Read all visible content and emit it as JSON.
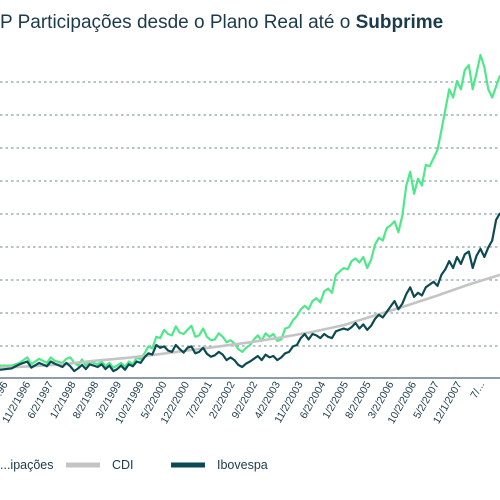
{
  "title": {
    "prefix": "P Participações desde o Plano Real até ",
    "o_word": "o",
    "bold": "Subprime"
  },
  "chart_data": {
    "type": "line",
    "title": "P Participações desde o Plano Real até o Subprime",
    "xlabel": "",
    "ylabel": "",
    "grid": true,
    "legend_position": "bottom",
    "x_tick_labels": [
      "...96",
      "11/2/1996",
      "6/2/1997",
      "1/2/1998",
      "8/2/1998",
      "3/2/1999",
      "10/2/1999",
      "5/2/2000",
      "12/2/2000",
      "7/2/2001",
      "2/2/2002",
      "9/2/2002",
      "4/2/2003",
      "11/2/2003",
      "6/2/2004",
      "1/2/2005",
      "8/2/2005",
      "3/2/2006",
      "10/2/2006",
      "5/2/2007",
      "12/1/2007",
      "7/..."
    ],
    "series": [
      {
        "name": "...ipações",
        "color": "#4ee88a",
        "values": [
          [
            0,
            18
          ],
          [
            3,
            18
          ],
          [
            5,
            22
          ],
          [
            7,
            30
          ],
          [
            8,
            20
          ],
          [
            10,
            28
          ],
          [
            12,
            22
          ],
          [
            13,
            30
          ],
          [
            14,
            25
          ],
          [
            16,
            22
          ],
          [
            17,
            28
          ],
          [
            18,
            30
          ],
          [
            19,
            22
          ],
          [
            20,
            18
          ],
          [
            21,
            27
          ],
          [
            22,
            18
          ],
          [
            23,
            24
          ],
          [
            25,
            20
          ],
          [
            26,
            24
          ],
          [
            27,
            17
          ],
          [
            28,
            22
          ],
          [
            29,
            15
          ],
          [
            30,
            18
          ],
          [
            31,
            22
          ],
          [
            32,
            16
          ],
          [
            33,
            24
          ],
          [
            34,
            20
          ],
          [
            35,
            30
          ],
          [
            36,
            27
          ],
          [
            37,
            36
          ],
          [
            38,
            46
          ],
          [
            39,
            43
          ],
          [
            40,
            60
          ],
          [
            41,
            58
          ],
          [
            42,
            70
          ],
          [
            43,
            64
          ],
          [
            44,
            62
          ],
          [
            45,
            75
          ],
          [
            46,
            66
          ],
          [
            47,
            64
          ],
          [
            48,
            70
          ],
          [
            49,
            76
          ],
          [
            50,
            60
          ],
          [
            51,
            62
          ],
          [
            52,
            72
          ],
          [
            53,
            60
          ],
          [
            54,
            55
          ],
          [
            55,
            56
          ],
          [
            56,
            65
          ],
          [
            57,
            60
          ],
          [
            58,
            52
          ],
          [
            59,
            55
          ],
          [
            60,
            50
          ],
          [
            61,
            42
          ],
          [
            62,
            38
          ],
          [
            63,
            44
          ],
          [
            64,
            48
          ],
          [
            65,
            56
          ],
          [
            66,
            62
          ],
          [
            67,
            54
          ],
          [
            68,
            65
          ],
          [
            69,
            60
          ],
          [
            70,
            64
          ],
          [
            71,
            54
          ],
          [
            72,
            56
          ],
          [
            73,
            72
          ],
          [
            74,
            74
          ],
          [
            75,
            84
          ],
          [
            76,
            90
          ],
          [
            77,
            100
          ],
          [
            78,
            105
          ],
          [
            79,
            100
          ],
          [
            80,
            112
          ],
          [
            81,
            116
          ],
          [
            82,
            110
          ],
          [
            83,
            126
          ],
          [
            84,
            130
          ],
          [
            85,
            124
          ],
          [
            86,
            150
          ],
          [
            87,
            155
          ],
          [
            88,
            160
          ],
          [
            89,
            158
          ],
          [
            90,
            170
          ],
          [
            91,
            174
          ],
          [
            92,
            168
          ],
          [
            93,
            176
          ],
          [
            94,
            160
          ],
          [
            95,
            172
          ],
          [
            96,
            194
          ],
          [
            97,
            204
          ],
          [
            98,
            200
          ],
          [
            99,
            218
          ],
          [
            100,
            222
          ],
          [
            101,
            228
          ],
          [
            102,
            212
          ],
          [
            103,
            236
          ],
          [
            104,
            280
          ],
          [
            105,
            300
          ],
          [
            106,
            268
          ],
          [
            107,
            290
          ],
          [
            108,
            280
          ],
          [
            109,
            310
          ],
          [
            110,
            308
          ],
          [
            111,
            320
          ],
          [
            112,
            332
          ],
          [
            113,
            360
          ],
          [
            114,
            390
          ],
          [
            115,
            420
          ],
          [
            116,
            408
          ],
          [
            117,
            432
          ],
          [
            118,
            420
          ],
          [
            119,
            448
          ],
          [
            120,
            455
          ],
          [
            121,
            420
          ],
          [
            122,
            444
          ],
          [
            123,
            470
          ],
          [
            124,
            452
          ],
          [
            125,
            420
          ],
          [
            126,
            408
          ],
          [
            127,
            424
          ],
          [
            128,
            440
          ]
        ]
      },
      {
        "name": "CDI",
        "color": "#c4c4c4",
        "values": [
          [
            0,
            15
          ],
          [
            8,
            17
          ],
          [
            16,
            20
          ],
          [
            24,
            25
          ],
          [
            32,
            29
          ],
          [
            40,
            34
          ],
          [
            48,
            40
          ],
          [
            56,
            46
          ],
          [
            64,
            52
          ],
          [
            72,
            59
          ],
          [
            80,
            67
          ],
          [
            88,
            77
          ],
          [
            96,
            91
          ],
          [
            104,
            105
          ],
          [
            112,
            120
          ],
          [
            120,
            136
          ],
          [
            128,
            150
          ]
        ]
      },
      {
        "name": "Ibovespa",
        "color": "#0c4a52",
        "values": [
          [
            0,
            12
          ],
          [
            3,
            14
          ],
          [
            5,
            20
          ],
          [
            7,
            24
          ],
          [
            8,
            15
          ],
          [
            10,
            22
          ],
          [
            12,
            17
          ],
          [
            13,
            24
          ],
          [
            14,
            21
          ],
          [
            16,
            16
          ],
          [
            17,
            22
          ],
          [
            18,
            17
          ],
          [
            19,
            10
          ],
          [
            20,
            14
          ],
          [
            21,
            19
          ],
          [
            22,
            13
          ],
          [
            23,
            20
          ],
          [
            25,
            16
          ],
          [
            26,
            20
          ],
          [
            27,
            13
          ],
          [
            28,
            18
          ],
          [
            29,
            10
          ],
          [
            30,
            13
          ],
          [
            31,
            18
          ],
          [
            32,
            12
          ],
          [
            33,
            20
          ],
          [
            34,
            17
          ],
          [
            35,
            24
          ],
          [
            36,
            22
          ],
          [
            37,
            30
          ],
          [
            38,
            36
          ],
          [
            39,
            34
          ],
          [
            40,
            48
          ],
          [
            41,
            44
          ],
          [
            42,
            46
          ],
          [
            43,
            40
          ],
          [
            44,
            38
          ],
          [
            45,
            48
          ],
          [
            46,
            42
          ],
          [
            47,
            37
          ],
          [
            48,
            44
          ],
          [
            49,
            46
          ],
          [
            50,
            36
          ],
          [
            51,
            38
          ],
          [
            52,
            44
          ],
          [
            53,
            35
          ],
          [
            54,
            31
          ],
          [
            55,
            33
          ],
          [
            56,
            38
          ],
          [
            57,
            34
          ],
          [
            58,
            26
          ],
          [
            59,
            30
          ],
          [
            60,
            26
          ],
          [
            61,
            19
          ],
          [
            62,
            16
          ],
          [
            63,
            21
          ],
          [
            64,
            24
          ],
          [
            65,
            28
          ],
          [
            66,
            32
          ],
          [
            67,
            26
          ],
          [
            68,
            34
          ],
          [
            69,
            30
          ],
          [
            70,
            32
          ],
          [
            71,
            26
          ],
          [
            72,
            30
          ],
          [
            73,
            36
          ],
          [
            74,
            38
          ],
          [
            75,
            46
          ],
          [
            76,
            48
          ],
          [
            77,
            58
          ],
          [
            78,
            64
          ],
          [
            79,
            56
          ],
          [
            80,
            64
          ],
          [
            81,
            62
          ],
          [
            82,
            58
          ],
          [
            83,
            64
          ],
          [
            84,
            60
          ],
          [
            85,
            58
          ],
          [
            86,
            68
          ],
          [
            87,
            70
          ],
          [
            88,
            72
          ],
          [
            89,
            70
          ],
          [
            90,
            74
          ],
          [
            91,
            80
          ],
          [
            92,
            72
          ],
          [
            93,
            78
          ],
          [
            94,
            70
          ],
          [
            95,
            76
          ],
          [
            96,
            86
          ],
          [
            97,
            92
          ],
          [
            98,
            88
          ],
          [
            99,
            96
          ],
          [
            100,
            104
          ],
          [
            101,
            112
          ],
          [
            102,
            100
          ],
          [
            103,
            108
          ],
          [
            104,
            122
          ],
          [
            105,
            132
          ],
          [
            106,
            118
          ],
          [
            107,
            124
          ],
          [
            108,
            120
          ],
          [
            109,
            132
          ],
          [
            110,
            136
          ],
          [
            111,
            140
          ],
          [
            112,
            134
          ],
          [
            113,
            150
          ],
          [
            114,
            158
          ],
          [
            115,
            170
          ],
          [
            116,
            160
          ],
          [
            117,
            176
          ],
          [
            118,
            166
          ],
          [
            119,
            180
          ],
          [
            120,
            184
          ],
          [
            121,
            160
          ],
          [
            122,
            178
          ],
          [
            123,
            188
          ],
          [
            124,
            176
          ],
          [
            125,
            190
          ],
          [
            126,
            200
          ],
          [
            127,
            230
          ],
          [
            128,
            240
          ]
        ]
      }
    ],
    "xlim": [
      0,
      128
    ],
    "ylim": [
      0,
      480
    ]
  }
}
